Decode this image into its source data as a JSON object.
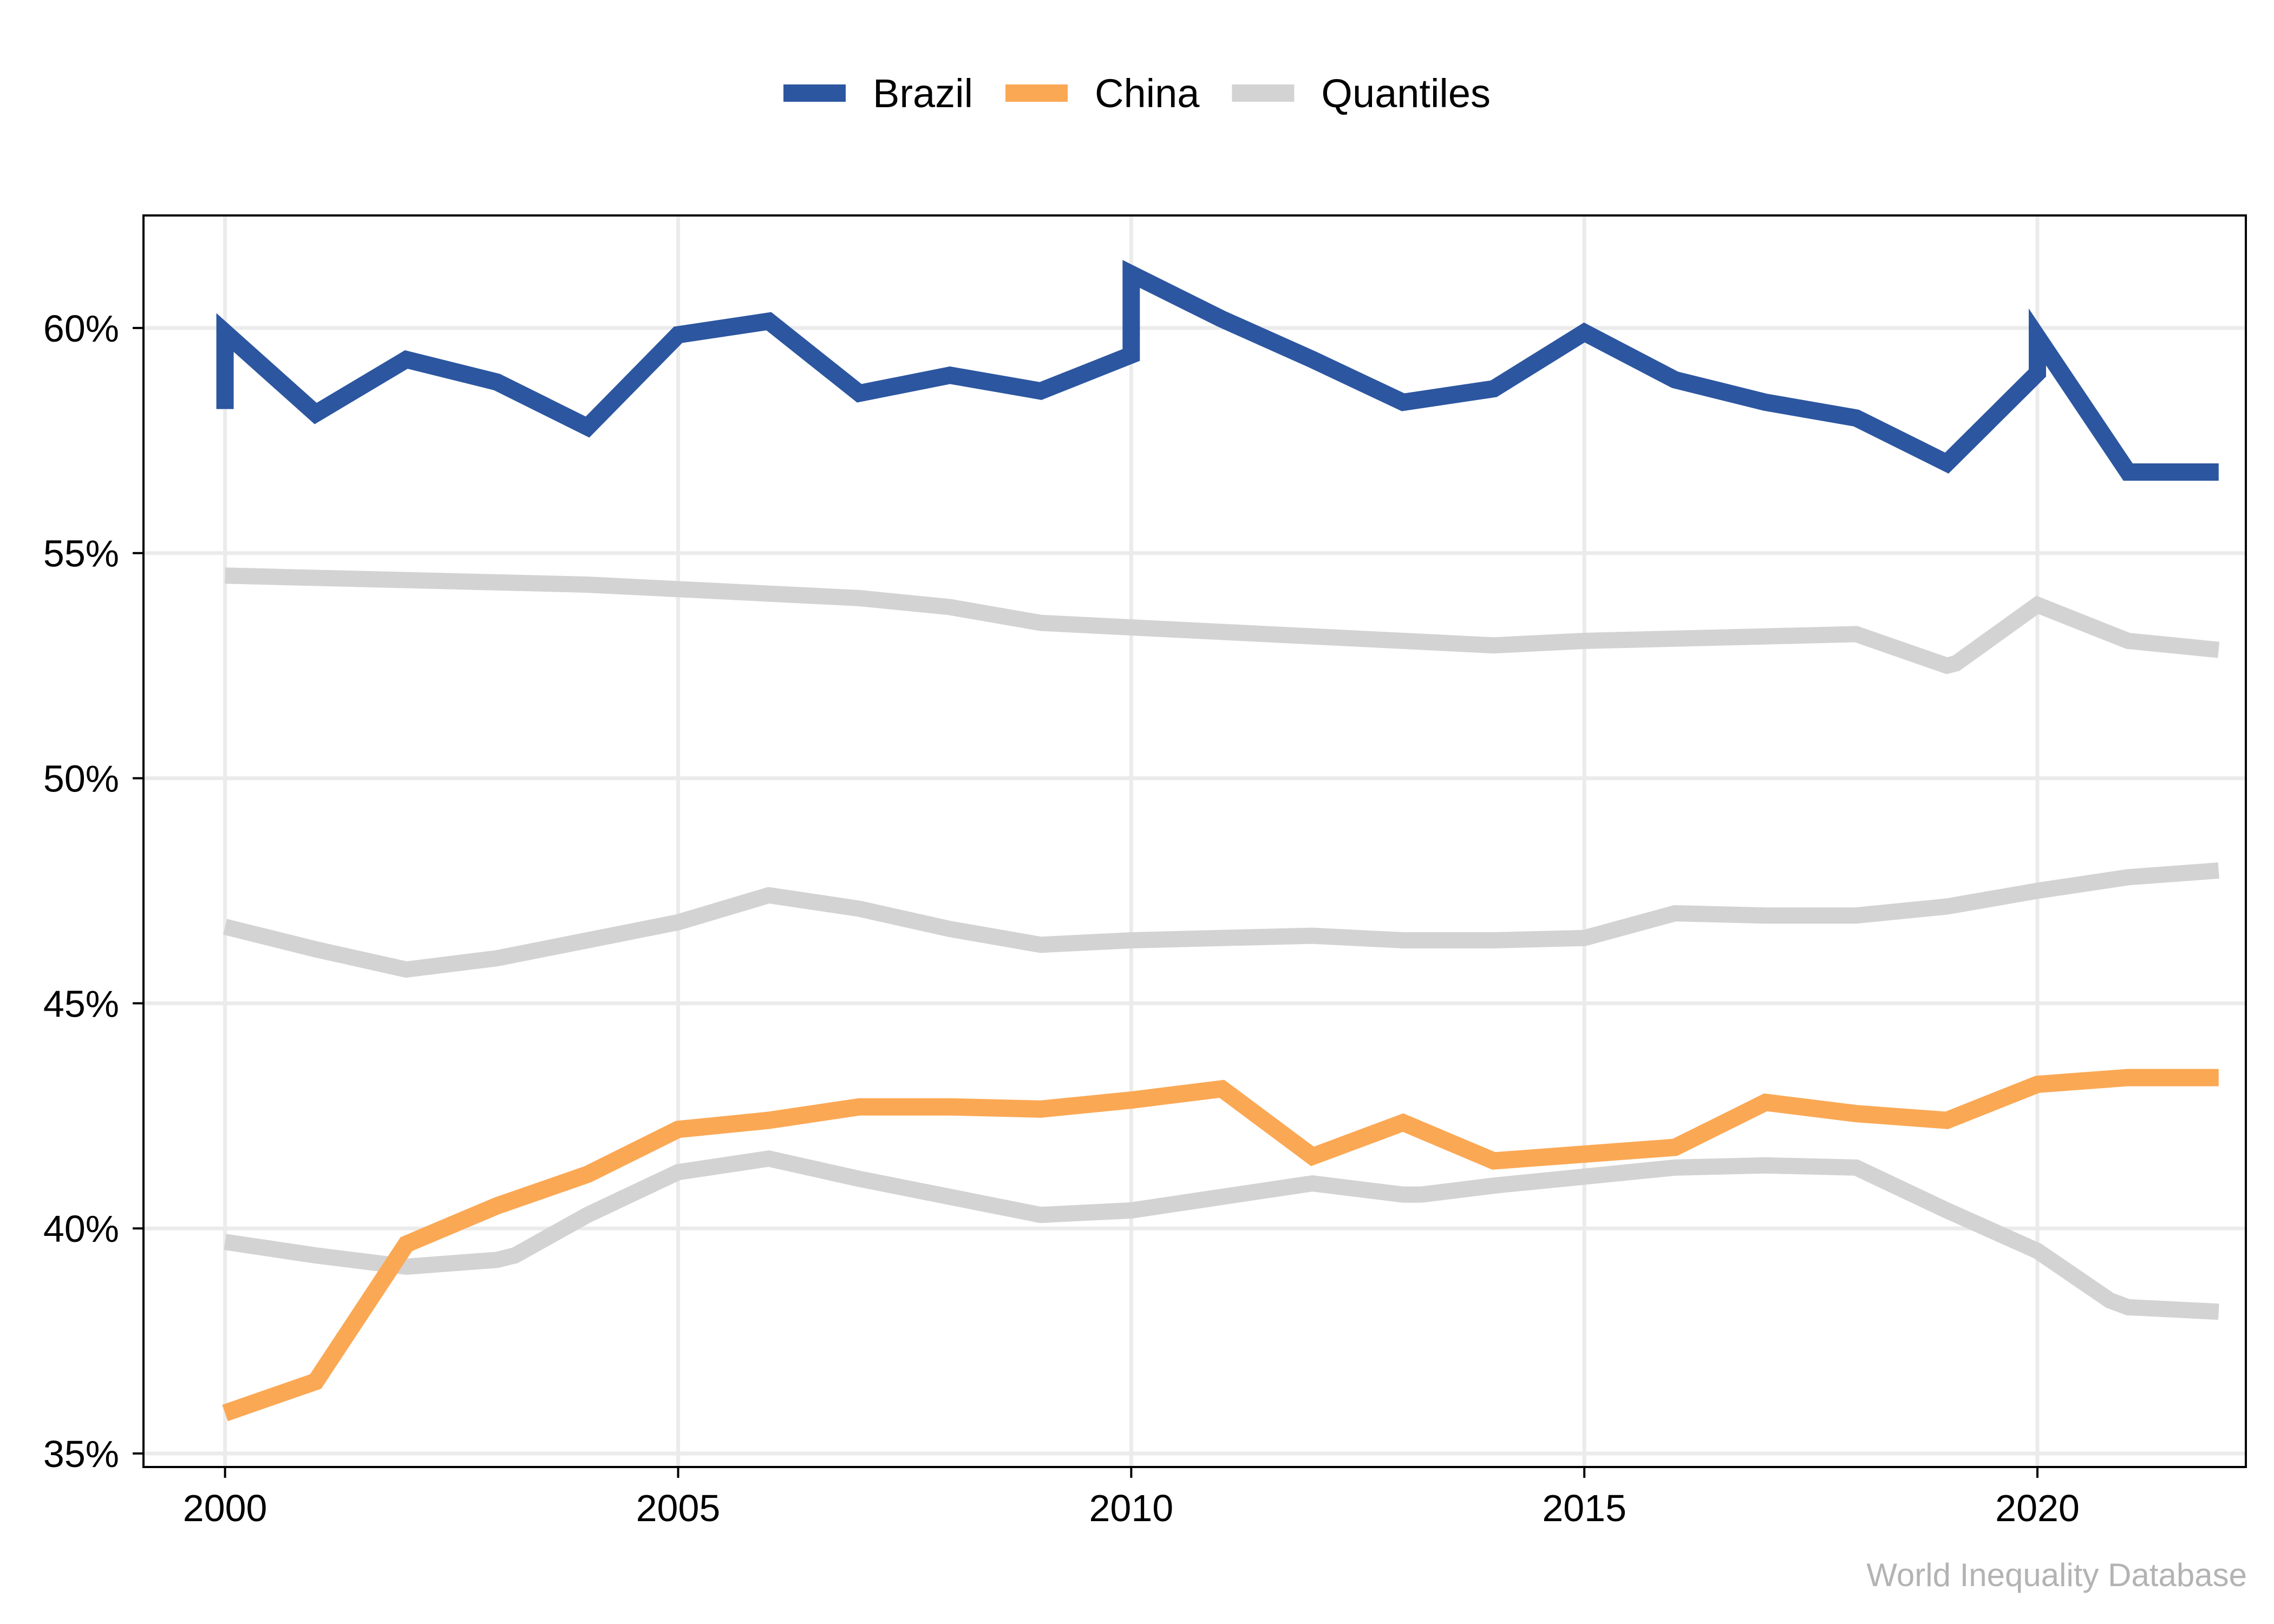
{
  "chart_data": {
    "type": "line",
    "title": "",
    "xlabel": "",
    "ylabel": "",
    "xlim": [
      1999.1,
      2022.3
    ],
    "ylim": [
      34.7,
      62.5
    ],
    "x_ticks": [
      2000,
      2005,
      2010,
      2015,
      2020
    ],
    "x_tick_labels": [
      "2000",
      "2005",
      "2010",
      "2015",
      "2020"
    ],
    "y_ticks": [
      35,
      40,
      45,
      50,
      55,
      60
    ],
    "y_tick_labels": [
      "35%",
      "40%",
      "45%",
      "50%",
      "55%",
      "60%"
    ],
    "grid": true,
    "legend_position": "top-center",
    "legend": [
      {
        "label": "Brazil",
        "color": "#2c56a0"
      },
      {
        "label": "China",
        "color": "#fba854"
      },
      {
        "label": "Quantiles",
        "color": "#d3d3d3"
      }
    ],
    "series": [
      {
        "name": "Quantiles",
        "color": "#d3d3d3",
        "points": [
          [
            2000,
            54.5
          ],
          [
            2001,
            54.45
          ],
          [
            2002,
            54.4
          ],
          [
            2003,
            54.35
          ],
          [
            2004,
            54.3
          ],
          [
            2005,
            54.2
          ],
          [
            2006,
            54.1
          ],
          [
            2007,
            54.0
          ],
          [
            2008,
            53.8
          ],
          [
            2009,
            53.45
          ],
          [
            2010,
            53.35
          ],
          [
            2011,
            53.25
          ],
          [
            2012,
            53.15
          ],
          [
            2013,
            53.05
          ],
          [
            2014,
            52.95
          ],
          [
            2015,
            53.05
          ],
          [
            2016,
            53.1
          ],
          [
            2017,
            53.15
          ],
          [
            2018,
            53.2
          ],
          [
            2019,
            52.5
          ],
          [
            2019.1,
            52.55
          ],
          [
            2020,
            53.85
          ],
          [
            2021,
            53.05
          ],
          [
            2022,
            52.85
          ]
        ]
      },
      {
        "name": "Quantiles",
        "color": "#d3d3d3",
        "points": [
          [
            2000,
            46.7
          ],
          [
            2001,
            46.2
          ],
          [
            2002,
            45.75
          ],
          [
            2003,
            46.0
          ],
          [
            2004,
            46.4
          ],
          [
            2005,
            46.8
          ],
          [
            2006,
            47.4
          ],
          [
            2007,
            47.1
          ],
          [
            2008,
            46.65
          ],
          [
            2009,
            46.3
          ],
          [
            2010,
            46.4
          ],
          [
            2011,
            46.45
          ],
          [
            2012,
            46.5
          ],
          [
            2013,
            46.4
          ],
          [
            2014,
            46.4
          ],
          [
            2015,
            46.45
          ],
          [
            2016,
            47.0
          ],
          [
            2017,
            46.95
          ],
          [
            2018,
            46.95
          ],
          [
            2019,
            47.15
          ],
          [
            2020,
            47.5
          ],
          [
            2021,
            47.8
          ],
          [
            2022,
            47.95
          ]
        ]
      },
      {
        "name": "Quantiles",
        "color": "#d3d3d3",
        "points": [
          [
            2000,
            39.7
          ],
          [
            2001,
            39.4
          ],
          [
            2002,
            39.15
          ],
          [
            2003,
            39.3
          ],
          [
            2003.2,
            39.4
          ],
          [
            2004,
            40.3
          ],
          [
            2005,
            41.25
          ],
          [
            2006,
            41.55
          ],
          [
            2007,
            41.1
          ],
          [
            2008,
            40.7
          ],
          [
            2009,
            40.3
          ],
          [
            2010,
            40.4
          ],
          [
            2011,
            40.7
          ],
          [
            2012,
            41.0
          ],
          [
            2013,
            40.75
          ],
          [
            2013.2,
            40.75
          ],
          [
            2014,
            40.95
          ],
          [
            2015,
            41.15
          ],
          [
            2016,
            41.35
          ],
          [
            2017,
            41.4
          ],
          [
            2018,
            41.35
          ],
          [
            2019,
            40.4
          ],
          [
            2020,
            39.5
          ],
          [
            2020.8,
            38.4
          ],
          [
            2021,
            38.25
          ],
          [
            2022,
            38.15
          ]
        ]
      },
      {
        "name": "Brazil",
        "color": "#2c56a0",
        "points": [
          [
            2000,
            58.2
          ],
          [
            2000,
            59.9
          ],
          [
            2001,
            58.1
          ],
          [
            2002,
            59.3
          ],
          [
            2003,
            58.8
          ],
          [
            2004,
            57.8
          ],
          [
            2005,
            59.85
          ],
          [
            2006,
            60.15
          ],
          [
            2007,
            58.55
          ],
          [
            2008,
            58.95
          ],
          [
            2009,
            58.6
          ],
          [
            2010,
            59.4
          ],
          [
            2010,
            61.2
          ],
          [
            2011,
            60.2
          ],
          [
            2012,
            59.3
          ],
          [
            2013,
            58.35
          ],
          [
            2014,
            58.65
          ],
          [
            2015,
            59.9
          ],
          [
            2016,
            58.85
          ],
          [
            2017,
            58.35
          ],
          [
            2018,
            58.0
          ],
          [
            2019,
            57.0
          ],
          [
            2020,
            59.0
          ],
          [
            2020,
            59.8
          ],
          [
            2021,
            56.8
          ],
          [
            2022,
            56.8
          ]
        ]
      },
      {
        "name": "China",
        "color": "#fba854",
        "points": [
          [
            2000,
            35.9
          ],
          [
            2001,
            36.6
          ],
          [
            2002,
            39.65
          ],
          [
            2003,
            40.5
          ],
          [
            2004,
            41.2
          ],
          [
            2005,
            42.2
          ],
          [
            2006,
            42.4
          ],
          [
            2007,
            42.7
          ],
          [
            2008,
            42.7
          ],
          [
            2009,
            42.65
          ],
          [
            2010,
            42.85
          ],
          [
            2011,
            43.1
          ],
          [
            2012,
            41.6
          ],
          [
            2013,
            42.35
          ],
          [
            2014,
            41.5
          ],
          [
            2015,
            41.65
          ],
          [
            2016,
            41.8
          ],
          [
            2017,
            42.8
          ],
          [
            2018,
            42.55
          ],
          [
            2019,
            42.4
          ],
          [
            2020,
            43.2
          ],
          [
            2021,
            43.35
          ],
          [
            2022,
            43.35
          ]
        ]
      }
    ]
  },
  "source_label": "World Inequality Database"
}
